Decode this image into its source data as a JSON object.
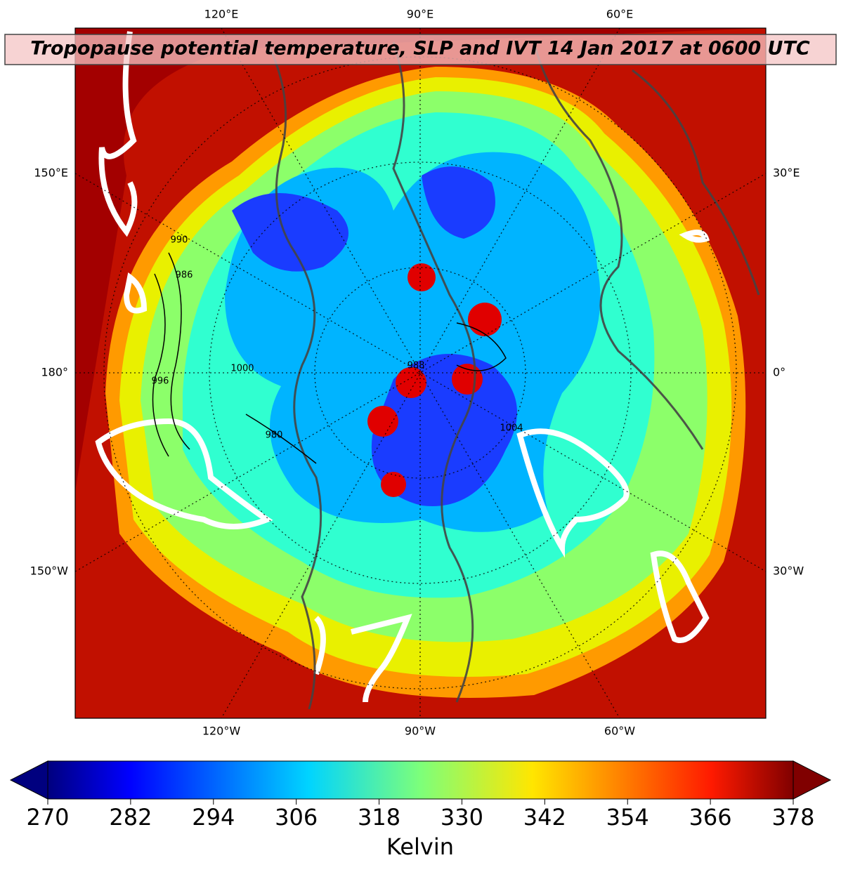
{
  "title": "Tropopause potential temperature, SLP and IVT 14 Jan 2017 at 0600 UTC",
  "map": {
    "top_labels": [
      "120°E",
      "90°E",
      "60°E"
    ],
    "bottom_labels": [
      "120°W",
      "90°W",
      "60°W"
    ],
    "left_labels": [
      "150°E",
      "180°",
      "150°W"
    ],
    "right_labels": [
      "30°E",
      "0°",
      "30°W"
    ],
    "contour_labels": [
      "990",
      "986",
      "996",
      "1000",
      "980",
      "988",
      "1004"
    ]
  },
  "colorbar": {
    "label": "Kelvin",
    "lim": [
      270,
      378
    ],
    "ticks": [
      270,
      282,
      294,
      306,
      318,
      330,
      342,
      354,
      366,
      378
    ]
  }
}
